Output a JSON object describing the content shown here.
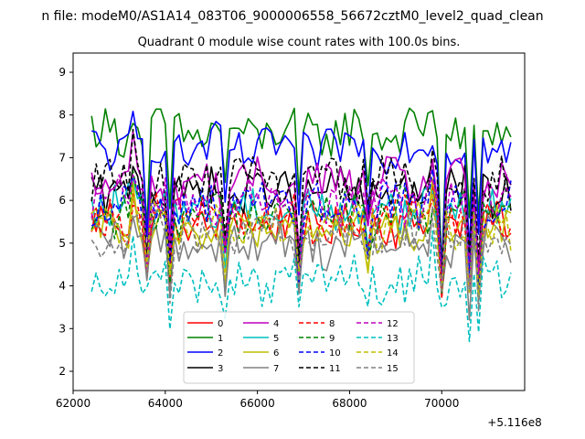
{
  "chart_data": {
    "type": "line",
    "suptitle": "n file: modeM0/AS1A14_083T06_9000006558_56672cztM0_level2_quad_clean",
    "title": "Quadrant 0 module wise count rates with 100.0s bins.",
    "xlabel": "",
    "ylabel": "",
    "x_offset_label": "+5.116e8",
    "xlim": [
      62000,
      71800
    ],
    "ylim": [
      1.55,
      9.45
    ],
    "xticks": [
      62000,
      64000,
      66000,
      68000,
      70000
    ],
    "xtick_labels": [
      "62000",
      "64000",
      "66000",
      "68000",
      "70000"
    ],
    "yticks": [
      2,
      3,
      4,
      5,
      6,
      7,
      8,
      9
    ],
    "ytick_labels": [
      "2",
      "3",
      "4",
      "5",
      "6",
      "7",
      "8",
      "9"
    ],
    "grid": false,
    "legend_placement": "lower center",
    "legend_columns": 4,
    "x_start": 62400,
    "x_step": 100,
    "num_points": 92,
    "dips": [
      {
        "x": 63600,
        "depth": 0.6
      },
      {
        "x": 64100,
        "depth": 0.25
      },
      {
        "x": 65300,
        "depth": 0.2
      },
      {
        "x": 66900,
        "depth": 0.25
      },
      {
        "x": 68400,
        "depth": 0.15
      },
      {
        "x": 70000,
        "depth": 0.7
      },
      {
        "x": 70600,
        "depth": 0.3
      },
      {
        "x": 70800,
        "depth": 0.3
      }
    ],
    "series": [
      {
        "name": "0",
        "color": "#ff0000",
        "dash": "solid",
        "level": 5.5
      },
      {
        "name": "1",
        "color": "#008000",
        "dash": "solid",
        "level": 7.6
      },
      {
        "name": "2",
        "color": "#0000ff",
        "dash": "solid",
        "level": 7.2
      },
      {
        "name": "3",
        "color": "#000000",
        "dash": "solid",
        "level": 6.2
      },
      {
        "name": "4",
        "color": "#bf00bf",
        "dash": "solid",
        "level": 6.4
      },
      {
        "name": "5",
        "color": "#00bfbf",
        "dash": "solid",
        "level": 5.8
      },
      {
        "name": "6",
        "color": "#bfbf00",
        "dash": "solid",
        "level": 5.3
      },
      {
        "name": "7",
        "color": "#808080",
        "dash": "solid",
        "level": 5.0
      },
      {
        "name": "8",
        "color": "#ff0000",
        "dash": "dashed",
        "level": 5.6
      },
      {
        "name": "9",
        "color": "#008000",
        "dash": "dashed",
        "level": 5.7
      },
      {
        "name": "10",
        "color": "#0000ff",
        "dash": "dashed",
        "level": 5.9
      },
      {
        "name": "11",
        "color": "#000000",
        "dash": "dashed",
        "level": 6.5
      },
      {
        "name": "12",
        "color": "#bf00bf",
        "dash": "dashed",
        "level": 6.0
      },
      {
        "name": "13",
        "color": "#00bfbf",
        "dash": "dashed",
        "level": 4.1
      },
      {
        "name": "14",
        "color": "#bfbf00",
        "dash": "dashed",
        "level": 5.4
      },
      {
        "name": "15",
        "color": "#808080",
        "dash": "dashed",
        "level": 5.2
      }
    ]
  }
}
